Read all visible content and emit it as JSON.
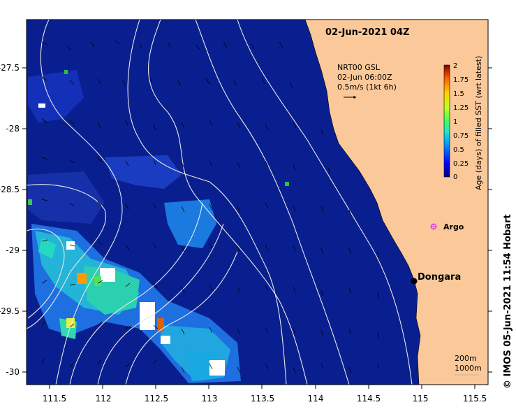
{
  "map": {
    "title": "02-Jun-2021 04Z",
    "x_ticks": [
      "111.5",
      "112",
      "112.5",
      "113",
      "113.5",
      "114",
      "114.5",
      "115",
      "115.5"
    ],
    "y_ticks": [
      "-27.5",
      "-28",
      "-28.5",
      "-29",
      "-29.5",
      "-30"
    ],
    "current_legend": {
      "line1": "NRT00 GSL",
      "line2": "02-Jun 06:00Z",
      "line3": "0.5m/s (1kt 6h)"
    },
    "colorbar": {
      "label": "Age (days) of filled SST (wrt latest)",
      "ticks": [
        "2",
        "1.75",
        "1.5",
        "1.25",
        "1",
        "0.75",
        "0.5",
        "0.25",
        "0"
      ]
    },
    "places": {
      "argo": "Argo",
      "dongara": "Dongara"
    },
    "isobaths": {
      "shallow": "200m",
      "deep": "1000m"
    },
    "credit": "© IMOS 05-Jun-2021 11:54 Hobart",
    "colors": {
      "ocean": "#0a1f8f",
      "land": "#fbc999",
      "contour": "#e8e8e8",
      "argo": "#e040e0"
    }
  }
}
